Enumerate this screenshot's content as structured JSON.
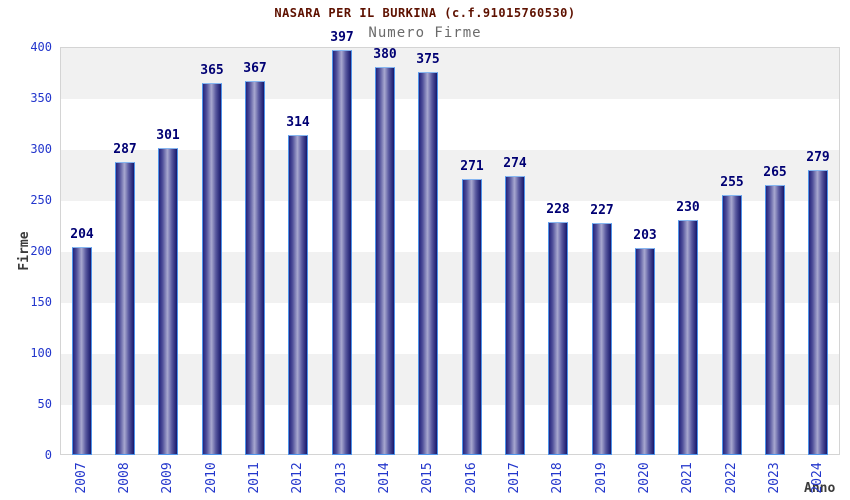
{
  "chart_data": {
    "type": "bar",
    "title": "NASARA PER IL BURKINA (c.f.91015760530)",
    "subtitle": "Numero Firme",
    "xlabel": "Anno",
    "ylabel": "Firme",
    "categories": [
      "2007",
      "2008",
      "2009",
      "2010",
      "2011",
      "2012",
      "2013",
      "2014",
      "2015",
      "2016",
      "2017",
      "2018",
      "2019",
      "2020",
      "2021",
      "2022",
      "2023",
      "2024"
    ],
    "values": [
      204,
      287,
      301,
      365,
      367,
      314,
      397,
      380,
      375,
      271,
      274,
      228,
      227,
      203,
      230,
      255,
      265,
      279
    ],
    "ylim": [
      0,
      400
    ],
    "ytick_step": 50,
    "grid": "horizontal-bands-alternating",
    "legend": "none",
    "colors": {
      "title": "#5e1100",
      "subtitle": "#6b6b6b",
      "axis_title": "#3b3b3b",
      "tick_label": "#2336cc",
      "value_label": "#000073",
      "bar_dark": "#23237d",
      "bar_light": "#a8a8d0",
      "bar_border": "#4e94ea",
      "band_gray": "#f1f1f1",
      "band_white": "#ffffff",
      "plot_border": "#d4d4d4"
    }
  }
}
